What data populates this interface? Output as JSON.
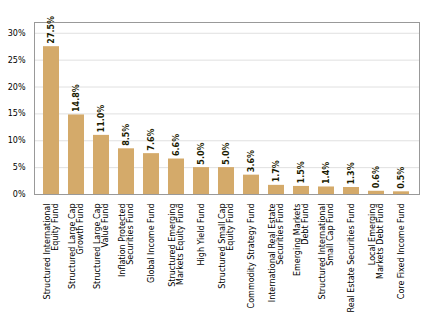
{
  "chart_data": {
    "type": "bar",
    "categories": [
      "Structured International\nEquity Fund",
      "Structured Large Cap\nGrowth Fund",
      "Structured Large Cap\nValue Fund",
      "Inflation Protected\nSecurities Fund",
      "Global Income Fund",
      "Structured Emerging\nMarkets Equity Fund",
      "High Yield Fund",
      "Structured Small Cap\nEquity Fund",
      "Commodity Strategy Fund",
      "International Real Estate\nSecurities Fund",
      "Emerging Markets\nDebt Fund",
      "Structured International\nSmall Cap Fund",
      "Real Estate Securities Fund",
      "Local Emerging\nMarkets Debt Fund",
      "Core Fixed Income Fund"
    ],
    "values": [
      27.5,
      14.8,
      11.0,
      8.5,
      7.6,
      6.6,
      5.0,
      5.0,
      3.6,
      1.7,
      1.5,
      1.4,
      1.3,
      0.6,
      0.5
    ],
    "value_labels": [
      "27.5%",
      "14.8%",
      "11.0%",
      "8.5%",
      "7.6%",
      "6.6%",
      "5.0%",
      "5.0%",
      "3.6%",
      "1.7%",
      "1.5%",
      "1.4%",
      "1.3%",
      "0.6%",
      "0.5%"
    ],
    "color": "#D4AA6A",
    "ylim": [
      0,
      32
    ],
    "yticks": [
      {
        "value": 0,
        "label": "0%"
      },
      {
        "value": 5,
        "label": "5%"
      },
      {
        "value": 10,
        "label": "10%"
      },
      {
        "value": 15,
        "label": "15%"
      },
      {
        "value": 20,
        "label": "20%"
      },
      {
        "value": 25,
        "label": "25%"
      },
      {
        "value": 30,
        "label": "30%"
      }
    ],
    "grid": true,
    "data_labels": true
  }
}
